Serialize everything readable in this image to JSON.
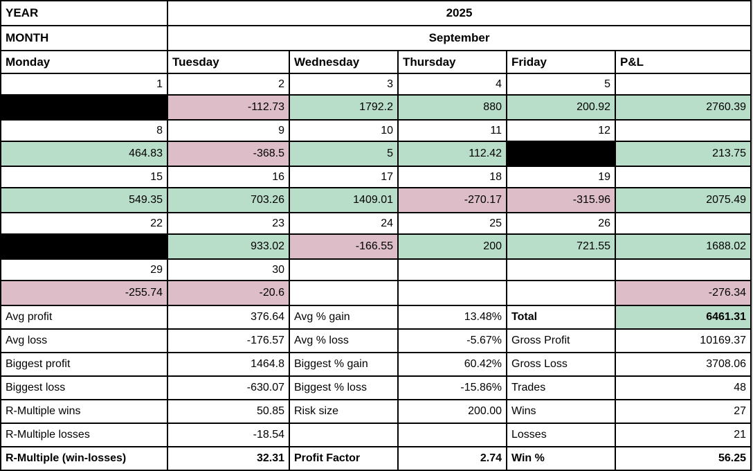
{
  "header": {
    "year_label": "YEAR",
    "year_value": "2025",
    "month_label": "MONTH",
    "month_value": "September"
  },
  "day_headers": [
    "Monday",
    "Tuesday",
    "Wednesday",
    "Thursday",
    "Friday",
    "P&L"
  ],
  "colors": {
    "green": "#b8dec9",
    "pink": "#dcbdc8",
    "black": "#000000",
    "white": "#ffffff"
  },
  "weeks": [
    {
      "dates": [
        "1",
        "2",
        "3",
        "4",
        "5",
        ""
      ],
      "values": [
        {
          "v": "",
          "bg": "black"
        },
        {
          "v": "-112.73",
          "bg": "pink"
        },
        {
          "v": "1792.2",
          "bg": "green"
        },
        {
          "v": "880",
          "bg": "green"
        },
        {
          "v": "200.92",
          "bg": "green"
        },
        {
          "v": "2760.39",
          "bg": "green"
        }
      ]
    },
    {
      "dates": [
        "8",
        "9",
        "10",
        "11",
        "12",
        ""
      ],
      "values": [
        {
          "v": "464.83",
          "bg": "green"
        },
        {
          "v": "-368.5",
          "bg": "pink"
        },
        {
          "v": "5",
          "bg": "green"
        },
        {
          "v": "112.42",
          "bg": "green"
        },
        {
          "v": "",
          "bg": "black"
        },
        {
          "v": "213.75",
          "bg": "green"
        }
      ]
    },
    {
      "dates": [
        "15",
        "16",
        "17",
        "18",
        "19",
        ""
      ],
      "values": [
        {
          "v": "549.35",
          "bg": "green"
        },
        {
          "v": "703.26",
          "bg": "green"
        },
        {
          "v": "1409.01",
          "bg": "green"
        },
        {
          "v": "-270.17",
          "bg": "pink"
        },
        {
          "v": "-315.96",
          "bg": "pink"
        },
        {
          "v": "2075.49",
          "bg": "green"
        }
      ]
    },
    {
      "dates": [
        "22",
        "23",
        "24",
        "25",
        "26",
        ""
      ],
      "values": [
        {
          "v": "",
          "bg": "black"
        },
        {
          "v": "933.02",
          "bg": "green"
        },
        {
          "v": "-166.55",
          "bg": "pink"
        },
        {
          "v": "200",
          "bg": "green"
        },
        {
          "v": "721.55",
          "bg": "green"
        },
        {
          "v": "1688.02",
          "bg": "green"
        }
      ]
    },
    {
      "dates": [
        "29",
        "30",
        "",
        "",
        "",
        ""
      ],
      "values": [
        {
          "v": "-255.74",
          "bg": "pink"
        },
        {
          "v": "-20.6",
          "bg": "pink"
        },
        {
          "v": "",
          "bg": "white"
        },
        {
          "v": "",
          "bg": "white"
        },
        {
          "v": "",
          "bg": "white"
        },
        {
          "v": "-276.34",
          "bg": "pink"
        }
      ]
    }
  ],
  "stats": [
    [
      {
        "text": "Avg profit"
      },
      {
        "text": "376.64",
        "num": true
      },
      {
        "text": "Avg % gain"
      },
      {
        "text": "13.48%",
        "num": true
      },
      {
        "text": "Total",
        "bold": true
      },
      {
        "text": "6461.31",
        "num": true,
        "bold": true,
        "bg": "green"
      }
    ],
    [
      {
        "text": "Avg loss"
      },
      {
        "text": "-176.57",
        "num": true
      },
      {
        "text": "Avg % loss"
      },
      {
        "text": "-5.67%",
        "num": true
      },
      {
        "text": "Gross Profit"
      },
      {
        "text": "10169.37",
        "num": true
      }
    ],
    [
      {
        "text": "Biggest profit"
      },
      {
        "text": "1464.8",
        "num": true
      },
      {
        "text": "Biggest % gain"
      },
      {
        "text": "60.42%",
        "num": true
      },
      {
        "text": "Gross Loss"
      },
      {
        "text": "3708.06",
        "num": true
      }
    ],
    [
      {
        "text": "Biggest loss"
      },
      {
        "text": "-630.07",
        "num": true
      },
      {
        "text": "Biggest % loss"
      },
      {
        "text": "-15.86%",
        "num": true
      },
      {
        "text": "Trades"
      },
      {
        "text": "48",
        "num": true
      }
    ],
    [
      {
        "text": "R-Multiple wins"
      },
      {
        "text": "50.85",
        "num": true
      },
      {
        "text": "Risk size"
      },
      {
        "text": "200.00",
        "num": true
      },
      {
        "text": "Wins"
      },
      {
        "text": "27",
        "num": true
      }
    ],
    [
      {
        "text": "R-Multiple losses"
      },
      {
        "text": "-18.54",
        "num": true
      },
      {
        "text": ""
      },
      {
        "text": "",
        "num": true
      },
      {
        "text": "Losses"
      },
      {
        "text": "21",
        "num": true
      }
    ],
    [
      {
        "text": "R-Multiple (win-losses)",
        "bold": true
      },
      {
        "text": "32.31",
        "num": true,
        "bold": true
      },
      {
        "text": "Profit Factor",
        "bold": true
      },
      {
        "text": "2.74",
        "num": true,
        "bold": true
      },
      {
        "text": "Win %",
        "bold": true
      },
      {
        "text": "56.25",
        "num": true,
        "bold": true
      }
    ]
  ]
}
